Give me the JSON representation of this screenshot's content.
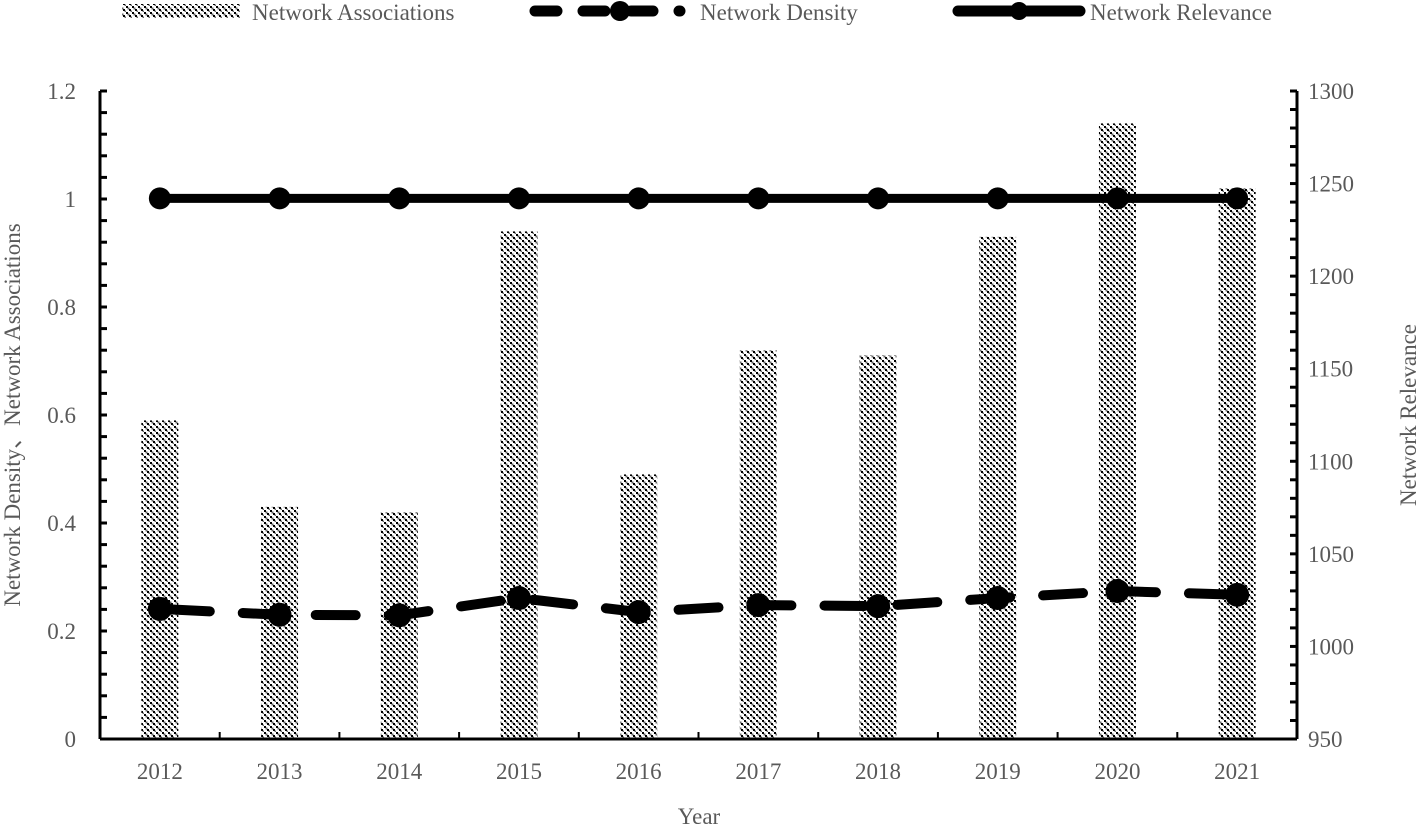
{
  "chart_data": {
    "type": "bar+line",
    "title": "",
    "xlabel": "Year",
    "ylabel_left": "Network Density、Network Associations",
    "ylabel_right": "Network Relevance",
    "categories": [
      "2012",
      "2013",
      "2014",
      "2015",
      "2016",
      "2017",
      "2018",
      "2019",
      "2020",
      "2021"
    ],
    "left_axis": {
      "range": [
        0,
        1.2
      ],
      "ticks": [
        "0",
        "0.2",
        "0.4",
        "0.6",
        "0.8",
        "1",
        "1.2"
      ],
      "tick_values": [
        0,
        0.2,
        0.4,
        0.6,
        0.8,
        1.0,
        1.2
      ],
      "minor_step": 0.04
    },
    "right_axis": {
      "range": [
        950,
        1300
      ],
      "ticks": [
        "950",
        "1000",
        "1050",
        "1100",
        "1150",
        "1200",
        "1250",
        "1300"
      ],
      "tick_values": [
        950,
        1000,
        1050,
        1100,
        1150,
        1200,
        1250,
        1300
      ],
      "minor_step": 10
    },
    "grid": false,
    "legend_position": "top",
    "series": [
      {
        "name": "Network Associations",
        "type": "bar",
        "axis": "left",
        "pattern": "checker-hatch",
        "values": [
          0.59,
          0.43,
          0.42,
          0.94,
          0.49,
          0.72,
          0.71,
          0.93,
          1.14,
          1.02
        ]
      },
      {
        "name": "Network Density",
        "type": "line",
        "style": "dashed",
        "marker": "circle",
        "axis": "left",
        "values": [
          0.241,
          0.23,
          0.229,
          0.261,
          0.235,
          0.248,
          0.246,
          0.261,
          0.274,
          0.267
        ]
      },
      {
        "name": "Network Relevance",
        "type": "line",
        "style": "solid",
        "marker": "circle",
        "axis": "right",
        "values": [
          1242,
          1242,
          1242,
          1242,
          1242,
          1242,
          1242,
          1242,
          1242,
          1242
        ]
      }
    ]
  },
  "legend": [
    {
      "label": "Network Associations"
    },
    {
      "label": "Network Density"
    },
    {
      "label": "Network Relevance"
    }
  ],
  "colors": {
    "text": "#595959",
    "axis": "#000000",
    "series": "#000000"
  }
}
